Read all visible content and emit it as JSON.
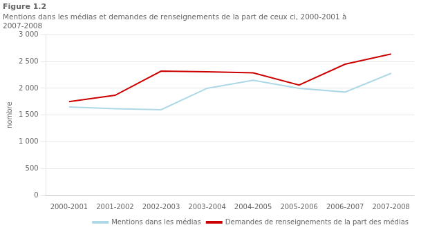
{
  "chart_data": {
    "type": "line",
    "title": "Figure 1.2",
    "subtitle": [
      "Mentions dans les médias et demandes de renseignements de la part de ceux ci, 2000-2001 à",
      "2007-2008"
    ],
    "ylabel": "nombre",
    "categories": [
      "2000-2001",
      "2001-2002",
      "2002-2003",
      "2003-2004",
      "2004-2005",
      "2005-2006",
      "2006-2007",
      "2007-2008"
    ],
    "series": [
      {
        "name": "Mentions dans les médias",
        "color": "#add8e6",
        "values": [
          1650,
          1620,
          1600,
          2000,
          2150,
          2000,
          1930,
          2280
        ]
      },
      {
        "name": "Demandes de renseignements de la part des médias",
        "color": "#cc0000",
        "values": [
          1750,
          1870,
          2320,
          2310,
          2290,
          2060,
          2450,
          2640
        ]
      }
    ],
    "ylim": [
      0,
      3000
    ],
    "yticks": [
      0,
      500,
      {
        "value": 1000,
        "label": "1 000"
      },
      {
        "value": 1500,
        "label": "1 500"
      },
      {
        "value": 2000,
        "label": "2 000"
      },
      {
        "value": 2500,
        "label": "2 500"
      },
      {
        "value": 3000,
        "label": "3 000"
      }
    ],
    "grid": "y",
    "legend": "lower right"
  }
}
